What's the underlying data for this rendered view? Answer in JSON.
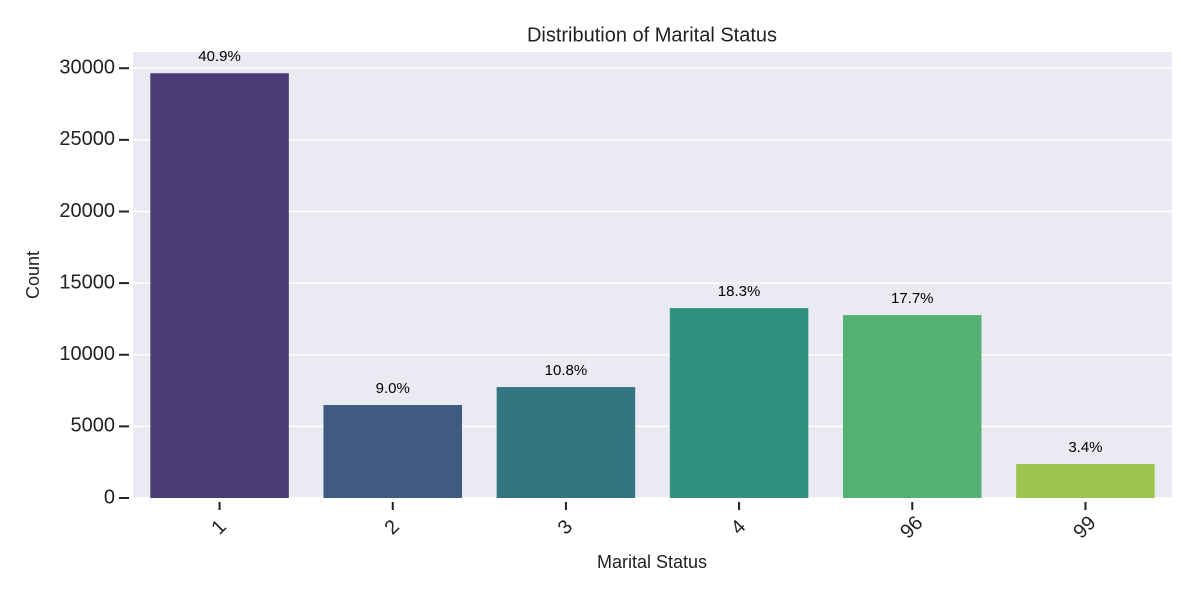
{
  "chart_data": {
    "type": "bar",
    "title": "Distribution of Marital Status",
    "x_label": "Marital Status",
    "y_label": "Count",
    "categories": [
      "1",
      "2",
      "3",
      "4",
      "96",
      "99"
    ],
    "values": [
      29650,
      6490,
      7745,
      13256,
      12767,
      2372
    ],
    "annotations": [
      "40.9%",
      "9.0%",
      "10.8%",
      "18.3%",
      "17.7%",
      "3.4%"
    ],
    "colors": [
      "#4b3c75",
      "#3f5b80",
      "#357582",
      "#30917e",
      "#55b073",
      "#9bc54c"
    ],
    "ylim": [
      0,
      31133
    ],
    "yticks": [
      0,
      5000,
      10000,
      15000,
      20000,
      25000,
      30000
    ],
    "grid": true
  }
}
